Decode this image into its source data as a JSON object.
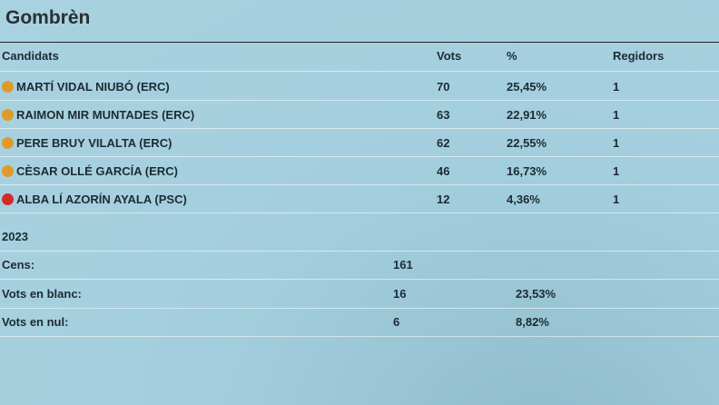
{
  "header": {
    "title": "Gombrèn"
  },
  "table": {
    "columns": [
      "Candidats",
      "Vots",
      "%",
      "Regidors"
    ],
    "rows": [
      {
        "name": "MARTÍ VIDAL NIUBÓ (ERC)",
        "color": "#e09a2a",
        "cells": [
          "70",
          "25,45%",
          "1"
        ]
      },
      {
        "name": "RAIMON MIR MUNTADES (ERC)",
        "color": "#e09a2a",
        "cells": [
          "63",
          "22,91%",
          "1"
        ]
      },
      {
        "name": "PERE BRUY VILALTA (ERC)",
        "color": "#e09a2a",
        "cells": [
          "62",
          "22,55%",
          "1"
        ]
      },
      {
        "name": "CÈSAR OLLÉ GARCÍA (ERC)",
        "color": "#e09a2a",
        "cells": [
          "46",
          "16,73%",
          "1"
        ]
      },
      {
        "name": "ALBA LÍ AZORÍN AYALA (PSC)",
        "color": "#d42a2a",
        "cells": [
          "12",
          "4,36%",
          "1"
        ]
      }
    ]
  },
  "summary": {
    "year": "2023",
    "rows": [
      [
        "Cens:",
        "161"
      ],
      [
        "Vots en blanc:",
        "16",
        "23,53%"
      ],
      [
        "Vots en nul:",
        "6",
        "8,82%"
      ]
    ]
  }
}
